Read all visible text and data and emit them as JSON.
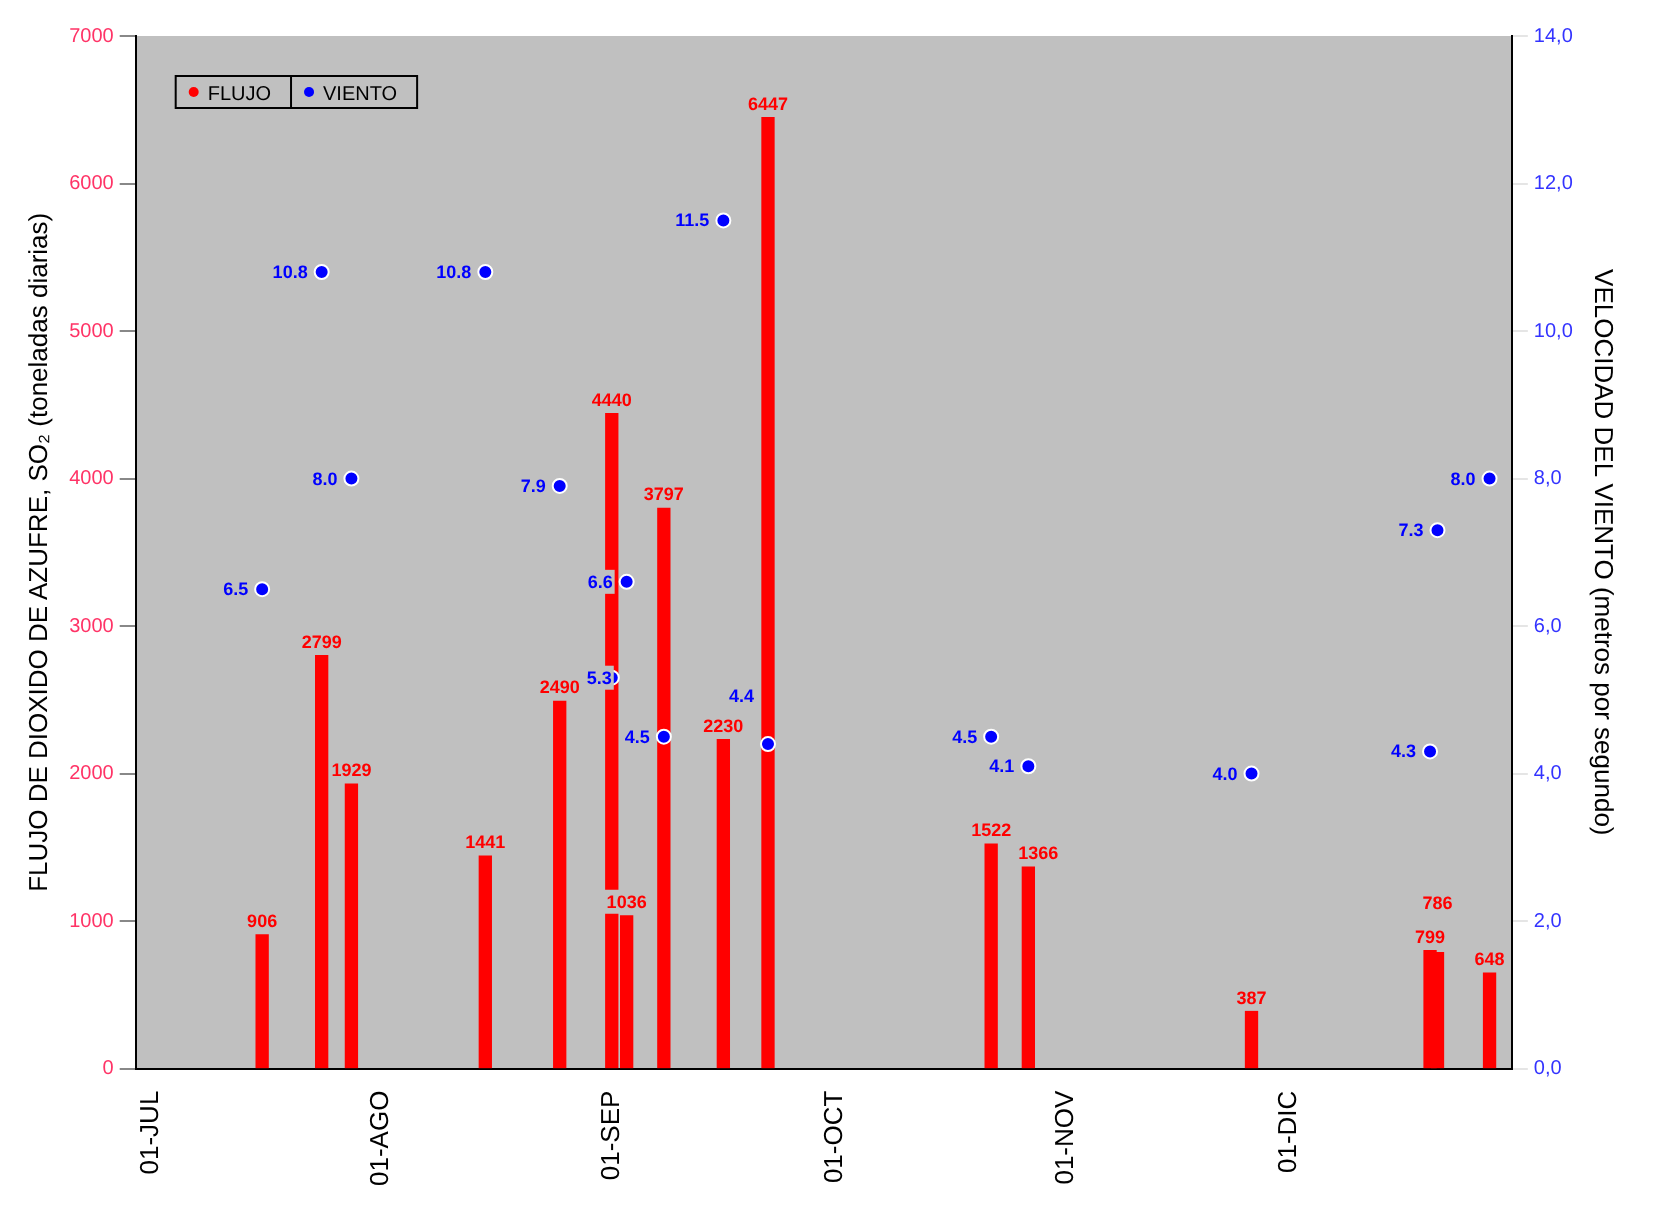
{
  "chart_data": {
    "type": "bar",
    "ylabel": "FLUJO DE DIOXIDO DE AZUFRE, SO₂ (toneladas diarias)",
    "y2label": "VELOCIDAD DEL VIENTO (metros por segundo)",
    "x": [
      "--07-16",
      "--07-24",
      "--07-28",
      "--08-15",
      "--08-25",
      "--09-01",
      "--09-03",
      "--09-08",
      "--09-16",
      "--09-22",
      "--10-22",
      "--10-27",
      "--11-26",
      "--12-20",
      "--12-21",
      "--12-28"
    ],
    "series": [
      {
        "name": "FLUJO",
        "color": "#ff0000",
        "values": [
          906,
          2799,
          1929,
          1441,
          2490,
          4440,
          1036,
          3797,
          2230,
          6447,
          1522,
          1366,
          387,
          799,
          786,
          648
        ]
      },
      {
        "name": "VIENTO",
        "type": "scatter",
        "axis": "y2",
        "color": "#0000ff",
        "values": [
          6.5,
          10.8,
          8.0,
          10.8,
          7.9,
          5.3,
          6.6,
          4.5,
          11.5,
          4.4,
          4.5,
          4.1,
          4.0,
          4.3,
          7.3,
          8.0
        ],
        "value_labels": [
          "6.5",
          "10.8",
          "8.0",
          "10.8",
          "7.9",
          "5.3",
          "6.6",
          "4.5",
          "11.5",
          "4.4",
          "4.5",
          "4.1",
          "4.0",
          "4.3",
          "7.3",
          "8.0"
        ]
      }
    ],
    "data_labels": true,
    "xlim": [
      "--06-29",
      "--12-31"
    ],
    "xticks": [
      {
        "value": "--07-01",
        "label": "01-JUL"
      },
      {
        "value": "--08-01",
        "label": "01-AGO"
      },
      {
        "value": "--09-01",
        "label": "01-SEP"
      },
      {
        "value": "--10-01",
        "label": "01-OCT"
      },
      {
        "value": "--11-01",
        "label": "01-NOV"
      },
      {
        "value": "--12-01",
        "label": "01-DIC"
      }
    ],
    "ylim": [
      0,
      7000
    ],
    "yticks": [
      0,
      1000,
      2000,
      3000,
      4000,
      5000,
      6000,
      7000
    ],
    "y2lim": [
      0,
      14
    ],
    "y2ticks": [
      {
        "value": 0,
        "label": "0,0"
      },
      {
        "value": 2,
        "label": "2,0"
      },
      {
        "value": 4,
        "label": "4,0"
      },
      {
        "value": 6,
        "label": "6,0"
      },
      {
        "value": 8,
        "label": "8,0"
      },
      {
        "value": 10,
        "label": "10,0"
      },
      {
        "value": 12,
        "label": "12,0"
      },
      {
        "value": 14,
        "label": "14,0"
      }
    ],
    "marker": "circle",
    "legend": "top left",
    "grid": false
  }
}
